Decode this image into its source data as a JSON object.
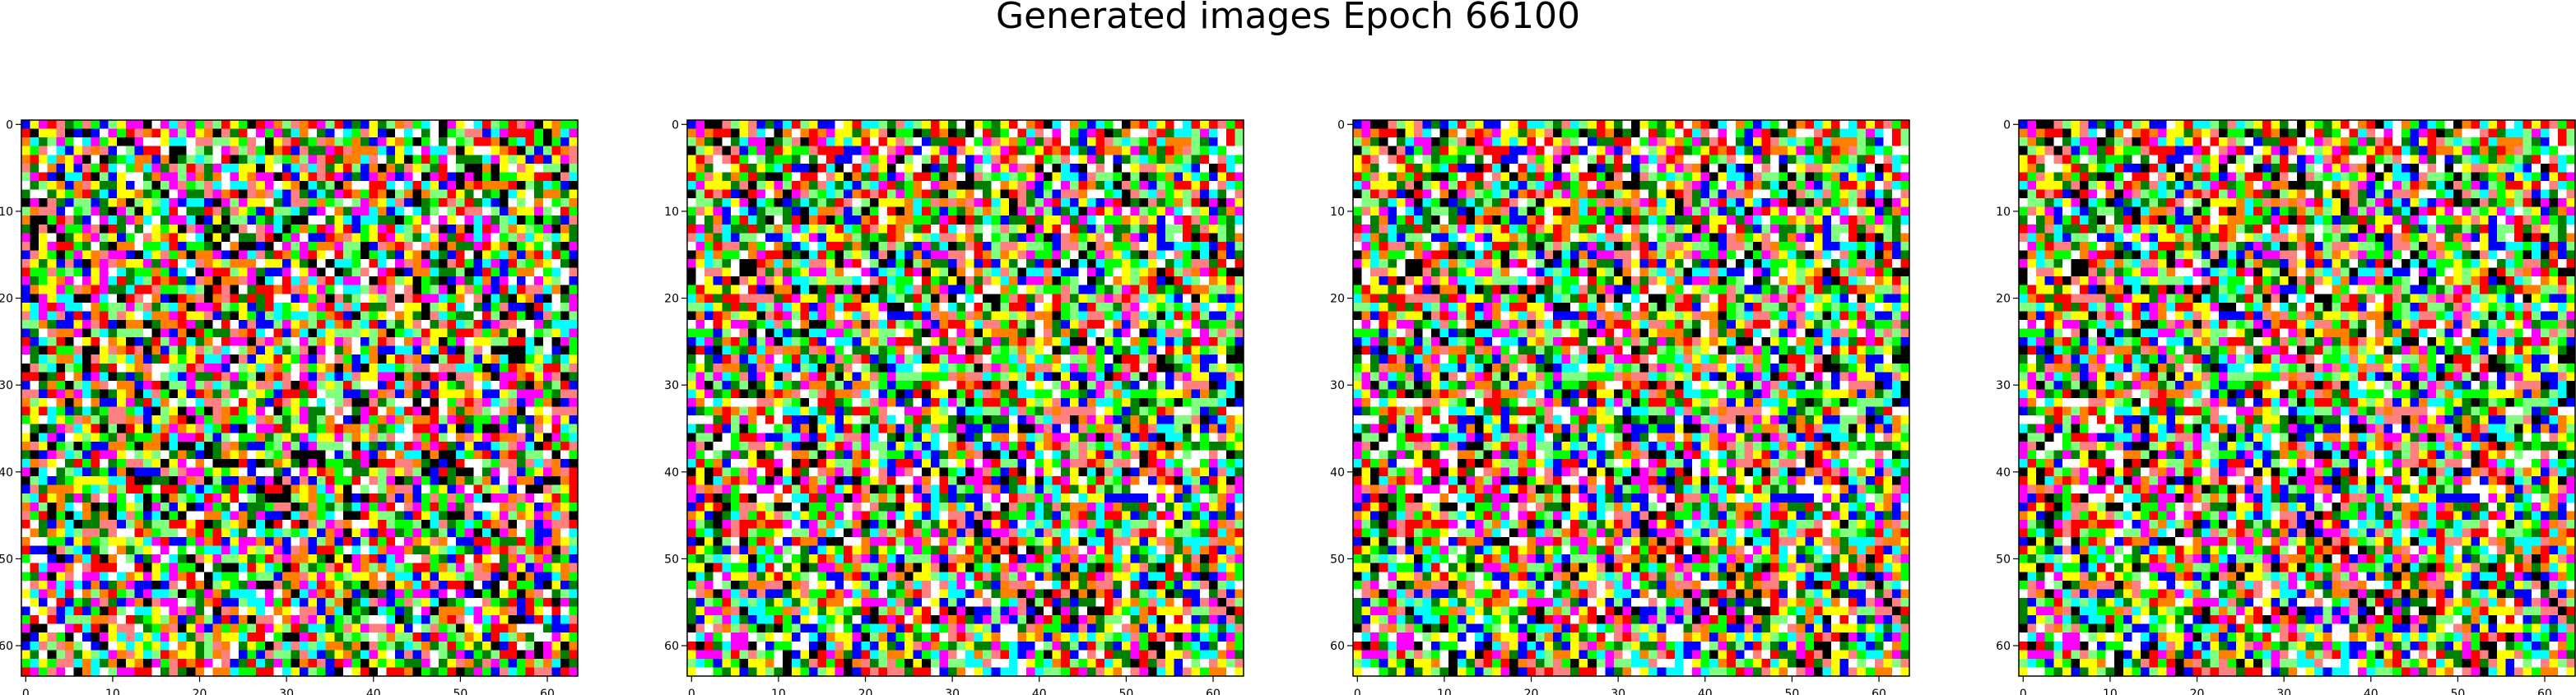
{
  "figure": {
    "title": "Generated images Epoch 66100"
  },
  "chart_data": [
    {
      "type": "heatmap",
      "title": "",
      "xlabel": "",
      "ylabel": "",
      "xlim": [
        -0.5,
        63.5
      ],
      "ylim": [
        63.5,
        -0.5
      ],
      "xticks": [
        0,
        10,
        20,
        30,
        40,
        50,
        60
      ],
      "yticks": [
        0,
        10,
        20,
        30,
        40,
        50,
        60
      ],
      "grid_size": 64,
      "pixel_values": "random-noise RGB (saturated primary/secondary colors, black, white)",
      "seed": 11
    },
    {
      "type": "heatmap",
      "title": "",
      "xlabel": "",
      "ylabel": "",
      "xlim": [
        -0.5,
        63.5
      ],
      "ylim": [
        63.5,
        -0.5
      ],
      "xticks": [
        0,
        10,
        20,
        30,
        40,
        50,
        60
      ],
      "yticks": [
        0,
        10,
        20,
        30,
        40,
        50,
        60
      ],
      "grid_size": 64,
      "pixel_values": "random-noise RGB (saturated primary/secondary colors, black, white)",
      "seed": 23
    },
    {
      "type": "heatmap",
      "title": "",
      "xlabel": "",
      "ylabel": "",
      "xlim": [
        -0.5,
        63.5
      ],
      "ylim": [
        63.5,
        -0.5
      ],
      "xticks": [
        0,
        10,
        20,
        30,
        40,
        50,
        60
      ],
      "yticks": [
        0,
        10,
        20,
        30,
        40,
        50,
        60
      ],
      "grid_size": 64,
      "pixel_values": "random-noise RGB (saturated primary/secondary colors, black, white)",
      "seed": 23
    },
    {
      "type": "heatmap",
      "title": "",
      "xlabel": "",
      "ylabel": "",
      "xlim": [
        -0.5,
        63.5
      ],
      "ylim": [
        63.5,
        -0.5
      ],
      "xticks": [
        0,
        10,
        20,
        30,
        40,
        50,
        60
      ],
      "yticks": [
        0,
        10,
        20,
        30,
        40,
        50,
        60
      ],
      "grid_size": 64,
      "pixel_values": "random-noise RGB (saturated primary/secondary colors, black, white)",
      "seed": 23
    }
  ],
  "palette": [
    "#ff0000",
    "#00ff00",
    "#0000ff",
    "#ffff00",
    "#ff00ff",
    "#00ffff",
    "#000000",
    "#ffffff",
    "#ff8080",
    "#80ff80",
    "#008000",
    "#ff8000"
  ]
}
